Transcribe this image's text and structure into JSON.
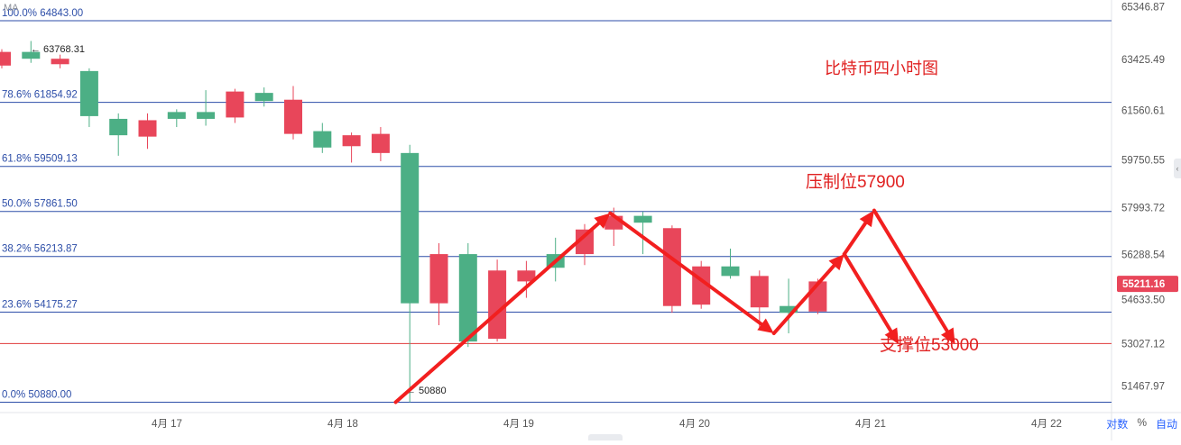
{
  "chart_data": {
    "type": "candlestick",
    "title": "比特币四小时图",
    "x_ticks": [
      "4月 17",
      "4月 18",
      "4月 19",
      "4月 20",
      "4月 21",
      "4月 22"
    ],
    "y_ticks": [
      "65346.87",
      "63425.49",
      "61560.61",
      "59750.55",
      "57993.72",
      "56288.54",
      "54633.50",
      "53027.12",
      "51467.97"
    ],
    "ylim": [
      50500,
      65600
    ],
    "current_price": "55211.16",
    "candles": [
      {
        "o": 63700,
        "c": 63200,
        "h": 63800,
        "l": 63100
      },
      {
        "o": 63450,
        "c": 63700,
        "h": 64100,
        "l": 63300
      },
      {
        "o": 63450,
        "c": 63250,
        "h": 63600,
        "l": 63100
      },
      {
        "o": 61350,
        "c": 63000,
        "h": 63100,
        "l": 60950
      },
      {
        "o": 60650,
        "c": 61250,
        "h": 61450,
        "l": 59900
      },
      {
        "o": 61200,
        "c": 60600,
        "h": 61450,
        "l": 60150
      },
      {
        "o": 61250,
        "c": 61500,
        "h": 61600,
        "l": 60950
      },
      {
        "o": 61250,
        "c": 61500,
        "h": 62300,
        "l": 61000
      },
      {
        "o": 62250,
        "c": 61300,
        "h": 62350,
        "l": 61100
      },
      {
        "o": 61900,
        "c": 62200,
        "h": 62400,
        "l": 61700
      },
      {
        "o": 61950,
        "c": 60700,
        "h": 62450,
        "l": 60500
      },
      {
        "o": 60200,
        "c": 60800,
        "h": 61100,
        "l": 60000
      },
      {
        "o": 60650,
        "c": 60250,
        "h": 60750,
        "l": 59650
      },
      {
        "o": 60700,
        "c": 60000,
        "h": 60950,
        "l": 59700
      },
      {
        "o": 54500,
        "c": 60000,
        "h": 60300,
        "l": 50880
      },
      {
        "o": 56300,
        "c": 54500,
        "h": 56700,
        "l": 53700
      },
      {
        "o": 53100,
        "c": 56300,
        "h": 56700,
        "l": 52900
      },
      {
        "o": 55700,
        "c": 53200,
        "h": 56100,
        "l": 53100
      },
      {
        "o": 55700,
        "c": 55300,
        "h": 56050,
        "l": 54700
      },
      {
        "o": 55800,
        "c": 56300,
        "h": 56900,
        "l": 55300
      },
      {
        "o": 57200,
        "c": 56300,
        "h": 57400,
        "l": 55900
      },
      {
        "o": 57700,
        "c": 57200,
        "h": 58000,
        "l": 56600
      },
      {
        "o": 57450,
        "c": 57700,
        "h": 57850,
        "l": 56300
      },
      {
        "o": 57250,
        "c": 54400,
        "h": 57350,
        "l": 54150
      },
      {
        "o": 55850,
        "c": 54450,
        "h": 56050,
        "l": 54300
      },
      {
        "o": 55500,
        "c": 55850,
        "h": 56500,
        "l": 55400
      },
      {
        "o": 55500,
        "c": 54350,
        "h": 55700,
        "l": 53600
      },
      {
        "o": 54150,
        "c": 54400,
        "h": 55400,
        "l": 53400
      },
      {
        "o": 55300,
        "c": 54200,
        "h": 55400,
        "l": 54100
      }
    ],
    "fib_levels": [
      {
        "label": "100.0% 64843.00",
        "value": 64843.0
      },
      {
        "label": "78.6% 61854.92",
        "value": 61854.92
      },
      {
        "label": "61.8% 59509.13",
        "value": 59509.13
      },
      {
        "label": "50.0% 57861.50",
        "value": 57861.5
      },
      {
        "label": "38.2% 56213.87",
        "value": 56213.87
      },
      {
        "label": "23.6% 54175.27",
        "value": 54175.27
      },
      {
        "label": "0.0% 50880.00",
        "value": 50880.0
      }
    ],
    "horizontal_line": {
      "value": 53027.12,
      "color": "#e03a3a"
    },
    "high_marker": "← 63768.31",
    "low_marker": "← 50880",
    "annotations": [
      {
        "text": "压制位57900",
        "color": "#e02020"
      },
      {
        "text": "支撑位53000",
        "color": "#e02020"
      }
    ],
    "arrow_paths": [
      [
        [
          18.3,
          50880
        ],
        [
          19.52,
          57800
        ],
        [
          20.45,
          53400
        ],
        [
          20.85,
          56300
        ],
        [
          21.02,
          57900
        ],
        [
          21.48,
          53000
        ]
      ],
      [
        [
          20.85,
          56300
        ],
        [
          21.16,
          53000
        ]
      ]
    ],
    "colors": {
      "up": "#4caf85",
      "down": "#e8465a",
      "fib": "#2d4ea8",
      "arrow": "#f21f1f",
      "axis_text": "#555555",
      "price_tag": "#e8465a"
    }
  },
  "ui": {
    "ma_label": "MA",
    "log_label": "对数",
    "percent_label": "%",
    "auto_label": "自动"
  }
}
